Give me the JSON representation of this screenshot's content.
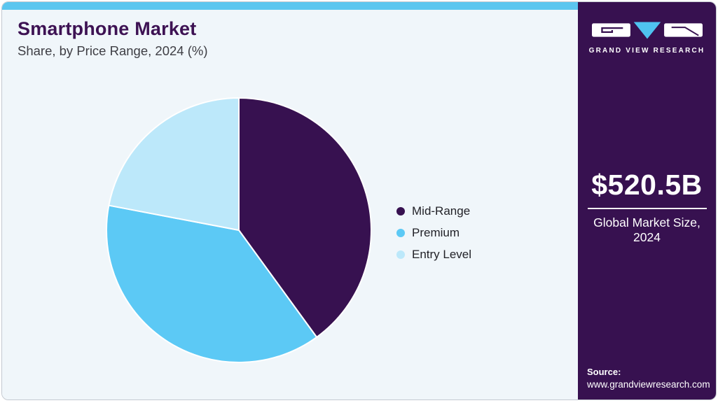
{
  "header": {
    "title": "Smartphone Market",
    "subtitle": "Share, by Price Range, 2024 (%)"
  },
  "chart_data": {
    "type": "pie",
    "title": "Smartphone Market Share, by Price Range, 2024 (%)",
    "categories": [
      "Mid-Range",
      "Premium",
      "Entry Level"
    ],
    "values": [
      40,
      38,
      22
    ],
    "unit": "%",
    "colors": [
      "#371150",
      "#5cc9f5",
      "#bce8fa"
    ],
    "start_angle_deg": 0,
    "direction": "clockwise",
    "legend_position": "right",
    "data_labels": false
  },
  "sidebar": {
    "brand": "GRAND VIEW RESEARCH",
    "market_size": {
      "value": "$520.5B",
      "label": "Global Market Size, 2024"
    },
    "source": {
      "label": "Source:",
      "url": "www.grandviewresearch.com"
    }
  },
  "colors": {
    "accent_purple": "#371150",
    "accent_blue": "#5cc9f5",
    "accent_light_blue": "#bce8fa",
    "top_bar": "#5bc6ef",
    "panel_background": "#f0f6fa",
    "title_text": "#3d1253",
    "logo_triangle": "#4fc3f0"
  }
}
